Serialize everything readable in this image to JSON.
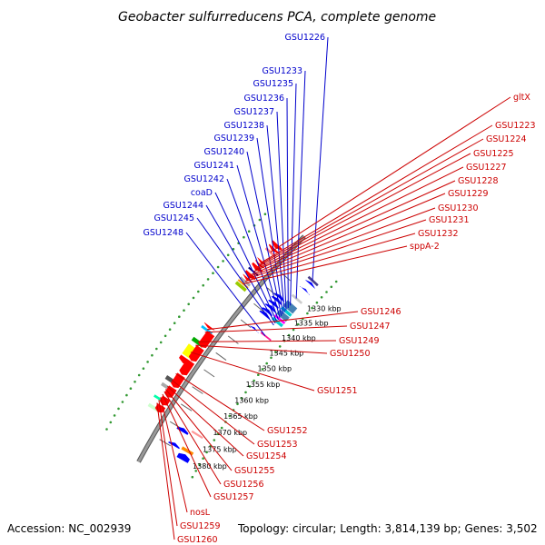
{
  "title": "Geobacter sulfurreducens PCA, complete genome",
  "footer": {
    "accession": "Accession: NC_002939",
    "summary": "Topology: circular; Length: 3,814,139 bp; Genes: 3,502"
  },
  "backbone_kbp": [
    1325,
    1382
  ],
  "ticks": [
    {
      "label": "1330 kbp",
      "kbp": 1330
    },
    {
      "label": "1335 kbp",
      "kbp": 1335
    },
    {
      "label": "1340 kbp",
      "kbp": 1340
    },
    {
      "label": "1345 kbp",
      "kbp": 1345
    },
    {
      "label": "1350 kbp",
      "kbp": 1350
    },
    {
      "label": "1355 kbp",
      "kbp": 1355
    },
    {
      "label": "1360 kbp",
      "kbp": 1360
    },
    {
      "label": "1365 kbp",
      "kbp": 1365
    },
    {
      "label": "1370 kbp",
      "kbp": 1370
    },
    {
      "label": "1375 kbp",
      "kbp": 1375
    },
    {
      "label": "1380 kbp",
      "kbp": 1380
    }
  ],
  "left_labels": [
    "GSU1226",
    "GSU1233",
    "GSU1235",
    "GSU1236",
    "GSU1237",
    "GSU1238",
    "GSU1239",
    "GSU1240",
    "GSU1241",
    "GSU1242",
    "coaD",
    "GSU1244",
    "GSU1245",
    "GSU1248"
  ],
  "right_labels": [
    "gltX",
    "GSU1223",
    "GSU1224",
    "GSU1225",
    "GSU1227",
    "GSU1228",
    "GSU1229",
    "GSU1230",
    "GSU1231",
    "GSU1232",
    "sppA-2",
    "GSU1246",
    "GSU1247",
    "GSU1249",
    "GSU1250",
    "GSU1251",
    "GSU1252",
    "GSU1253",
    "GSU1254",
    "GSU1255",
    "GSU1256",
    "GSU1257",
    "nosL",
    "GSU1259",
    "GSU1260"
  ],
  "colors": {
    "forward": "#ff0000",
    "reverse": "#0000ff",
    "backbone": "#999999",
    "gc_dots": "#339933",
    "left_label": "#0000cc",
    "right_label": "#cc0000"
  }
}
